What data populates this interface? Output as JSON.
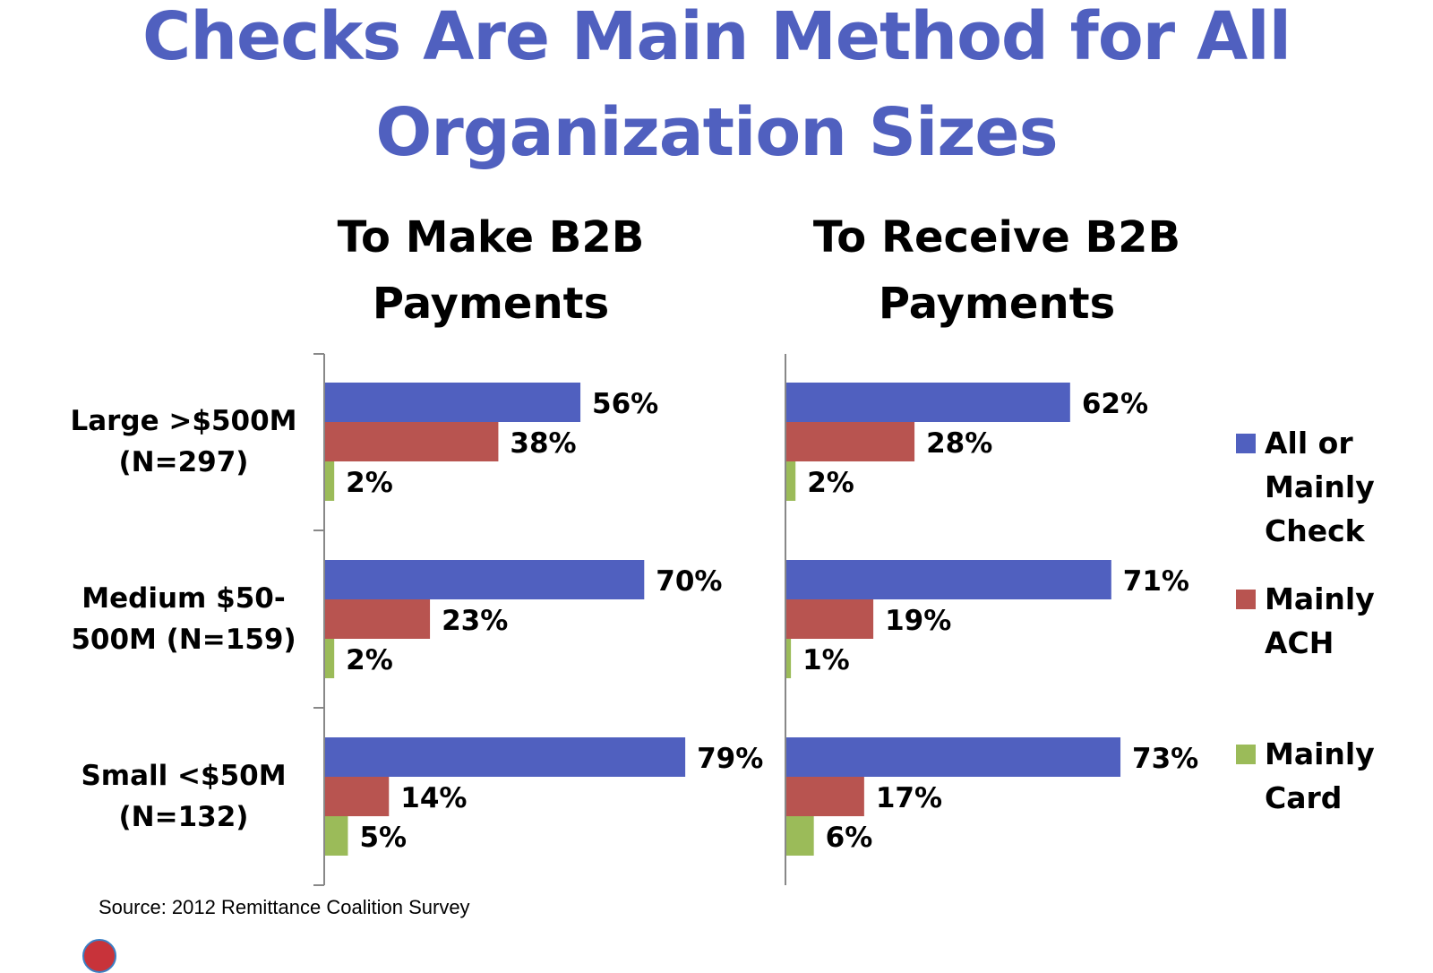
{
  "title_lines": [
    "Checks Are Main Method for All",
    "Organization Sizes"
  ],
  "source": "Source:  2012 Remittance Coalition Survey",
  "colors": {
    "check": "#5060BF",
    "ach": "#B85450",
    "card": "#9BBB59",
    "title": "#5060BF"
  },
  "categories": [
    {
      "lines": [
        "Large >$500M",
        "(N=297)"
      ]
    },
    {
      "lines": [
        "Medium $50-",
        "500M (N=159)"
      ]
    },
    {
      "lines": [
        "Small <$50M",
        "(N=132)"
      ]
    }
  ],
  "legend": [
    {
      "lines": [
        "All or",
        "Mainly",
        "Check"
      ],
      "color": "#5060BF",
      "icon": "square-swatch"
    },
    {
      "lines": [
        "Mainly",
        "ACH"
      ],
      "color": "#B85450",
      "icon": "square-swatch"
    },
    {
      "lines": [
        "Mainly",
        "Card"
      ],
      "color": "#9BBB59",
      "icon": "square-swatch"
    }
  ],
  "chart_data": [
    {
      "type": "bar",
      "orientation": "horizontal",
      "title": "To Make B2B Payments",
      "title_lines": [
        "To Make B2B",
        "Payments"
      ],
      "categories": [
        "Large >$500M (N=297)",
        "Medium $50-500M (N=159)",
        "Small <$50M (N=132)"
      ],
      "series": [
        {
          "name": "All or Mainly Check",
          "values": [
            56,
            70,
            79
          ],
          "labels": [
            "56%",
            "70%",
            "79%"
          ]
        },
        {
          "name": "Mainly ACH",
          "values": [
            38,
            23,
            14
          ],
          "labels": [
            "38%",
            "23%",
            "14%"
          ]
        },
        {
          "name": "Mainly Card",
          "values": [
            2,
            2,
            5
          ],
          "labels": [
            "2%",
            "2%",
            "5%"
          ]
        }
      ],
      "xlim": [
        0,
        100
      ],
      "grid": false,
      "legend": "right"
    },
    {
      "type": "bar",
      "orientation": "horizontal",
      "title": "To Receive B2B Payments",
      "title_lines": [
        "To Receive B2B",
        "Payments"
      ],
      "categories": [
        "Large >$500M (N=297)",
        "Medium $50-500M (N=159)",
        "Small <$50M (N=132)"
      ],
      "series": [
        {
          "name": "All or Mainly Check",
          "values": [
            62,
            71,
            73
          ],
          "labels": [
            "62%",
            "71%",
            "73%"
          ]
        },
        {
          "name": "Mainly ACH",
          "values": [
            28,
            19,
            17
          ],
          "labels": [
            "28%",
            "19%",
            "17%"
          ]
        },
        {
          "name": "Mainly Card",
          "values": [
            2,
            1,
            6
          ],
          "labels": [
            "2%",
            "1%",
            "6%"
          ]
        }
      ],
      "xlim": [
        0,
        100
      ],
      "grid": false,
      "legend": "right"
    }
  ]
}
